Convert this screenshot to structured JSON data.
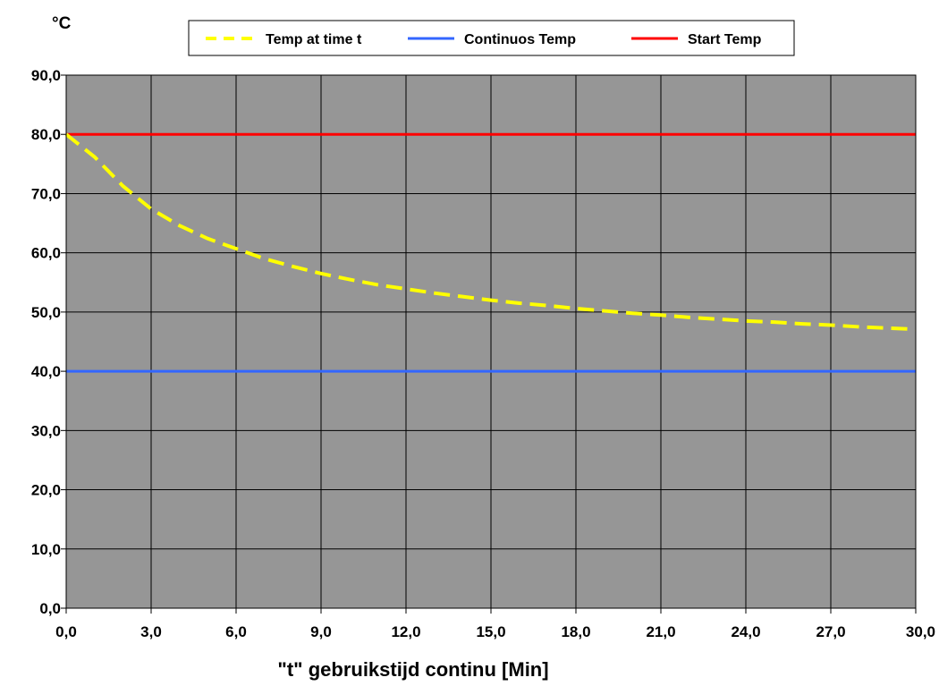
{
  "chart_data": {
    "type": "line",
    "title": "",
    "ylabel": "°C",
    "xlabel": "\"t\" gebruikstijd continu [Min]",
    "xlim": [
      0,
      30
    ],
    "ylim": [
      0,
      90
    ],
    "x_ticks": [
      0,
      3,
      6,
      9,
      12,
      15,
      18,
      21,
      24,
      27,
      30
    ],
    "y_ticks": [
      0,
      10,
      20,
      30,
      40,
      50,
      60,
      70,
      80,
      90
    ],
    "x_tick_labels": [
      "0,0",
      "3,0",
      "6,0",
      "9,0",
      "12,0",
      "15,0",
      "18,0",
      "21,0",
      "24,0",
      "27,0",
      "30,0"
    ],
    "y_tick_labels": [
      "0,0",
      "10,0",
      "20,0",
      "30,0",
      "40,0",
      "50,0",
      "60,0",
      "70,0",
      "80,0",
      "90,0"
    ],
    "grid": true,
    "plot_background": "#969696",
    "legend_position": "top",
    "series": [
      {
        "name": "Temp at time t",
        "color": "#ffff00",
        "style": "dashed",
        "x": [
          0,
          1,
          2,
          3,
          4,
          5,
          6,
          7,
          8,
          9,
          10,
          11,
          12,
          13,
          14,
          15,
          16,
          17,
          18,
          19,
          20,
          21,
          22,
          23,
          24,
          25,
          26,
          27,
          28,
          29,
          30
        ],
        "y": [
          80.0,
          76.2,
          71.3,
          67.4,
          64.6,
          62.4,
          60.7,
          59.0,
          57.7,
          56.5,
          55.5,
          54.6,
          53.9,
          53.2,
          52.6,
          52.0,
          51.5,
          51.1,
          50.6,
          50.2,
          49.8,
          49.5,
          49.1,
          48.8,
          48.5,
          48.3,
          48.0,
          47.8,
          47.5,
          47.3,
          47.1
        ]
      },
      {
        "name": "Continuos Temp",
        "color": "#3366ff",
        "style": "solid",
        "x": [
          0,
          30
        ],
        "y": [
          40,
          40
        ]
      },
      {
        "name": "Start Temp",
        "color": "#ff0000",
        "style": "solid",
        "x": [
          0,
          30
        ],
        "y": [
          80,
          80
        ]
      }
    ]
  }
}
